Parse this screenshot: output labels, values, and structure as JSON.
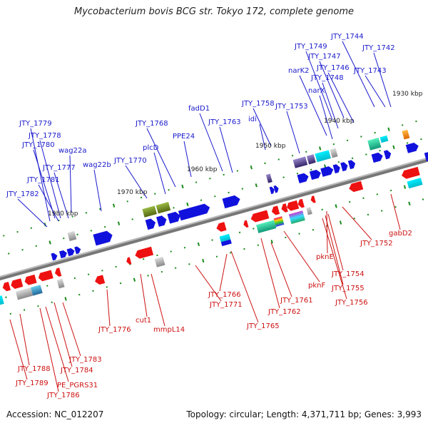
{
  "title": "Mycobacterium bovis BCG str. Tokyo 172, complete genome",
  "footer": {
    "accession": "Accession: NC_012207",
    "summary": "Topology: circular; Length: 4,371,711 bp; Genes: 3,993"
  },
  "colors": {
    "forward_label": "#1a1acc",
    "reverse_label": "#cc1111",
    "forward_gene": "#1111dd",
    "reverse_gene": "#ee1111",
    "backbone": "#777777",
    "tick": "#1a8a1a"
  },
  "kbp_ticks": [
    "1980 kbp",
    "1970 kbp",
    "1960 kbp",
    "1950 kbp",
    "1940 kbp",
    "1930 kbp"
  ],
  "forward_labels": [
    "JTY_1744",
    "JTY_1749",
    "JTY_1742",
    "JTY_1747",
    "JTY_1746",
    "narK2",
    "JTY_1743",
    "JTY_1748",
    "narX",
    "JTY_1758",
    "fadD1",
    "JTY_1753",
    "idi",
    "JTY_1763",
    "JTY_1779",
    "JTY_1768",
    "JTY_1778",
    "JTY_1780",
    "wag22a",
    "plcD",
    "PPE24",
    "JTY_1777",
    "wag22b",
    "JTY_1770",
    "JTY_1781",
    "JTY_1782"
  ],
  "reverse_labels": [
    "gabD2",
    "JTY_1752",
    "pknE",
    "JTY_1754",
    "JTY_1755",
    "JTY_1756",
    "pknF",
    "JTY_1766",
    "JTY_1761",
    "JTY_1771",
    "JTY_1762",
    "cut1",
    "JTY_1776",
    "JTY_1765",
    "mmpL14",
    "JTY_1783",
    "JTY_1784",
    "JTY_1788",
    "PE_PGRS31",
    "JTY_1789",
    "JTY_1786"
  ]
}
